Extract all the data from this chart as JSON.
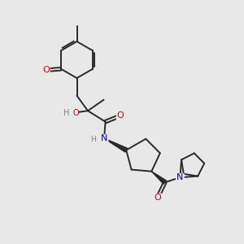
{
  "bg_color": "#e8e8e8",
  "bond_color": "#2a2a2a",
  "atom_colors": {
    "O": "#dd0000",
    "N": "#0000cc",
    "C": "#2a2a2a",
    "H": "#4a9a8a"
  },
  "figsize": [
    3.0,
    3.0
  ],
  "dpi": 100
}
